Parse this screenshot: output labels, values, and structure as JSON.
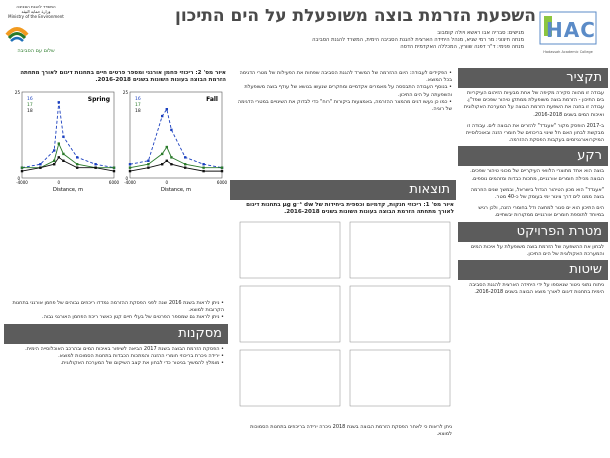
{
  "header": {
    "title": "השפעת הזרמת בוצה משופעלת על הים התיכון",
    "authors_line1": "מגישים: סבריה אבו ראשא ויולה קומבוב",
    "authors_line2": "מנחה חיצוני: מר רמי שגיא, מנהל היחידה הארצית להגנת הסביבה הימית, המשרד להגנת הסביבה",
    "authors_line3": "מנחה פנימי: ד\"ר דפנה שוורץ, המכללה האקדמית הדסה",
    "ministry_logo_text": "המשרד להגנת הסביבה\nوزارة حماية البيئة\nMinistry of the Environment",
    "ministry_slogan": "שלום עם הסביבה",
    "hac_logo": "HAC",
    "hac_sub": "Hadassah Academic College"
  },
  "colors": {
    "header_bg": "#5c5c5c",
    "title": "#4a4a4a",
    "hac": "#5b8bc7",
    "green": "#2a7a2a"
  },
  "right_column": {
    "summary": {
      "heading": "תקציר",
      "p1": "עבודה זו מהווה סקירה מקיפה של אחת מבעיות הזיהום העיקריות בים התיכון - הזרמת בוצה משופעלת ממתקן טיהור שפכים שפד\"ן. עבודה זו בחנה את השפעת הזרמת הבוצה על המערכת האקולוגית ואיכות המים בשנים 2016-2018.",
      "p2": "ב-2017 הופסק מקור \"אעגדד\" להזרים את הבוצה לים. עבודה זו מבקשת לבחון האם חל שינוי בריכוזים של חומרי הזנה ובאוכלוסיית המיקרואורגניזמים בעקבות הפסקת ההזרמה."
    },
    "background": {
      "heading": "רקע",
      "p1": "בוצה הוא אחד מתוצרי הלוואי העיקריים של מכוני טיהור שפכים. הבוצה מכילה חומרים אורגניים, מתכות כבדות ומזהמים נוספים.",
      "p2": "\"אעגדד\" הוא מכון הטיהור הגדול בישראל, ובמשך שנים הוזרמה בוצה ממנו לים דרך צינור ימי בעומק של כ-40 מטר.",
      "p3": "הים התיכון הוא ים סגור למחצה ודל בחומרי הזנה, ולכן רגיש במיוחד לתוספת חומרים אורגניים ממקורות יבשתיים."
    },
    "goal": {
      "heading": "מטרת הפרויקט",
      "p1": "לבחון את ההשפעה של הזרמת בוצה משופעלת על איכות המים והמערכת האקולוגית של הים התיכון."
    },
    "methods": {
      "heading": "שיטות",
      "p1": "ניתוח נתוני ניטור שנאספו על ידי היחידה הארצית להגנת הסביבה הימית בתחנות דיגום לאורך מוצא הבוצה בשנים 2016-2018."
    }
  },
  "middle_column": {
    "bullets": "• הפקידים לעבודה: היום ההזרמה של המשרד להגנת הסביבה שפחות את הפעילות של מטרי הדגימה בכל המוצא.\n• בנוסף העבודה התבססה על מאמרים אקדמיים ומחקרים שנעשו בנושא של עודף בוצה משופעלת והשפעתה על הים התיכון.\n• כמו כן נעשו דגים מהמצר ההזרמה, באמצעות ביקורות \"רוח\" כדי לבדוק את השינויים במטרי הדגימה של רוגיה.",
    "results_heading": "תוצאות",
    "fig1_caption": "איור מס' 1: ריכוזי חנקות, קדמיום וכספית ביחידות של µg g⁻¹ dw בתחנות דיגום לאורך מתחתה הזרמת הבוצה בעונות השונות בשנים 2016-2018.",
    "res_text": "ניתן לראות כי לאחר הפסקת הזרמת הבוצה בשנת 2018 ניכרה ירידה בריכוזים בתחנות הסמוכות למוצא."
  },
  "left_column": {
    "fig2_caption": "איור מס' 2: ריכוזי פחמן אורגני ומספר פרטים חיים בתחנות דיגום לאורך מתחתה הזרמת הבוצה בעונות השונות בשנים 2016-2018.",
    "res_text": "• ניתן לראות בשנת 2016 שנה לפני הפסקת ההזרמה נמדדו ריכוזים גבוהים של פחמן אורגני בתחנות הקרובות למוצא.\n• ניתן לראות גם שמספר הפרטים של בעלי חיים קטן כאשר ריכוז הפחמן האורגני גבוה.",
    "conclusions_heading": "מסקנות",
    "conclusions": "• הפסקת הזרמת הבוצה בשנת 2017 הביאה לשיפור באיכות המים ובהרכב האוכלוסייה הימית.\n• ירידה ניכרת בריכוזי חומרי ההזנה והמתכות הכבדות בתחנות הסמוכות למוצא.\n• מומלץ להמשיך בניטור כדי לבחון את קצב השיקום של המערכת האקולוגית."
  },
  "chart_data": [
    {
      "type": "line",
      "title": "Spring",
      "xlabel": "Distance, m",
      "ylabel": "C_org",
      "ylim": [
        0,
        25
      ],
      "x": [
        -4000,
        -2000,
        -500,
        0,
        500,
        2000,
        4000,
        6000
      ],
      "series": [
        {
          "name": "16",
          "values": [
            3,
            4,
            8,
            22,
            12,
            6,
            4,
            3
          ]
        },
        {
          "name": "17",
          "values": [
            3,
            3,
            5,
            10,
            7,
            4,
            3,
            3
          ]
        },
        {
          "name": "18",
          "values": [
            2,
            3,
            4,
            6,
            5,
            3,
            3,
            2
          ]
        }
      ]
    },
    {
      "type": "line",
      "title": "Fall",
      "xlabel": "Distance, m",
      "ylabel": "C_org",
      "ylim": [
        0,
        25
      ],
      "x": [
        -4000,
        -2000,
        -500,
        0,
        500,
        2000,
        4000,
        6000
      ],
      "series": [
        {
          "name": "16",
          "values": [
            4,
            5,
            18,
            20,
            14,
            6,
            4,
            3
          ]
        },
        {
          "name": "17",
          "values": [
            3,
            4,
            7,
            9,
            6,
            4,
            3,
            3
          ]
        },
        {
          "name": "18",
          "values": [
            2,
            3,
            4,
            5,
            4,
            3,
            2,
            2
          ]
        }
      ]
    }
  ]
}
